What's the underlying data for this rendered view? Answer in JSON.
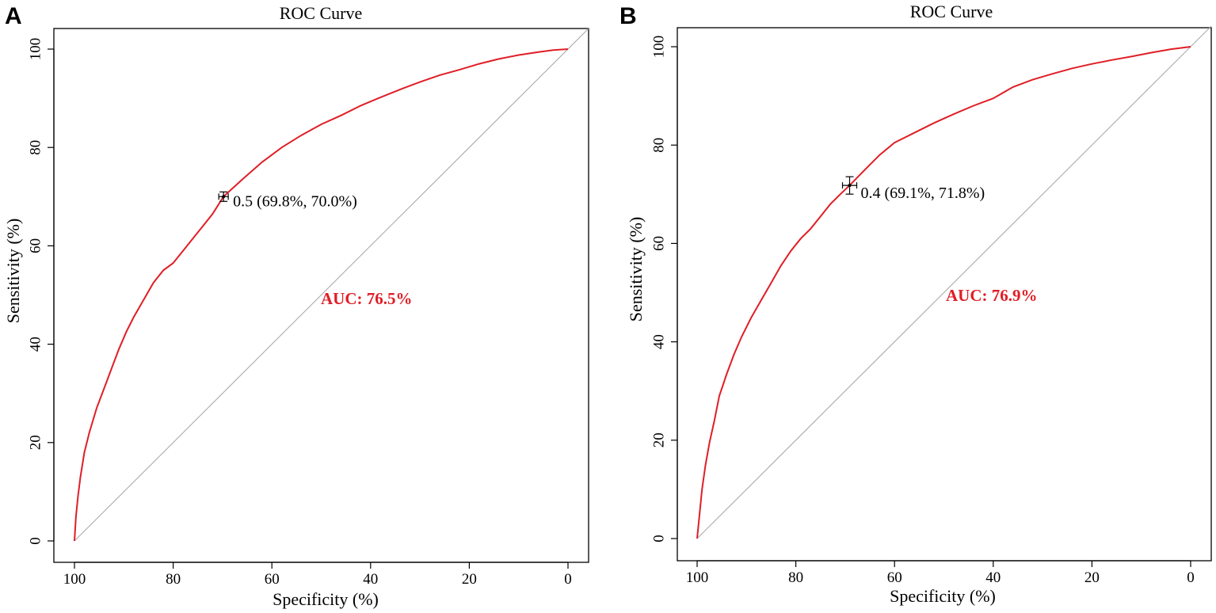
{
  "chart_data": [
    {
      "type": "line",
      "panel_label": "A",
      "title": "ROC Curve",
      "xlabel": "Specificity (%)",
      "ylabel": "Sensitivity (%)",
      "xlim": [
        100,
        0
      ],
      "ylim": [
        0,
        100
      ],
      "xticks": [
        "100",
        "80",
        "60",
        "40",
        "20",
        "0"
      ],
      "yticks": [
        "0",
        "20",
        "40",
        "60",
        "80",
        "100"
      ],
      "series": [
        {
          "name": "ROC",
          "color": "#e01e26",
          "x": [
            100,
            99.7,
            99.3,
            98.8,
            98,
            97,
            95.5,
            94,
            92.5,
            91,
            89.5,
            88,
            86,
            84,
            82,
            80,
            78,
            76,
            74,
            72,
            69.8,
            66,
            62,
            58,
            54,
            50,
            46,
            42,
            38,
            34,
            30,
            26,
            22,
            18,
            14,
            10,
            6,
            3,
            0
          ],
          "y": [
            0,
            5,
            9,
            13,
            18,
            22,
            27,
            31,
            35,
            39,
            42.5,
            45.5,
            49,
            52.5,
            55,
            56.5,
            59,
            61.5,
            64,
            66.5,
            70,
            73.5,
            77,
            80,
            82.5,
            84.7,
            86.5,
            88.5,
            90.2,
            91.8,
            93.3,
            94.7,
            95.8,
            97,
            98,
            98.8,
            99.4,
            99.8,
            100
          ]
        }
      ],
      "reference_line": {
        "x": [
          100,
          0
        ],
        "y": [
          0,
          100
        ],
        "color": "#aaaaaa"
      },
      "threshold_point": {
        "x": 69.8,
        "y": 70.0,
        "label": "0.5 (69.8%, 70.0%)"
      },
      "auc_label": "AUC: 76.5%",
      "auc_color": "#e01e26"
    },
    {
      "type": "line",
      "panel_label": "B",
      "title": "ROC Curve",
      "xlabel": "Specificity (%)",
      "ylabel": "Sensitivity (%)",
      "xlim": [
        100,
        0
      ],
      "ylim": [
        0,
        100
      ],
      "xticks": [
        "100",
        "80",
        "60",
        "40",
        "20",
        "0"
      ],
      "yticks": [
        "0",
        "20",
        "40",
        "60",
        "80",
        "100"
      ],
      "series": [
        {
          "name": "ROC",
          "color": "#e01e26",
          "x": [
            100,
            99.5,
            99,
            98.3,
            97.5,
            96.5,
            95.5,
            94,
            92.5,
            91,
            89,
            87,
            85,
            83,
            81,
            79,
            77,
            75,
            73,
            71,
            69.1,
            66,
            63,
            60,
            56,
            52,
            48,
            44,
            40,
            36,
            32,
            28,
            24,
            20,
            16,
            12,
            8,
            4,
            0
          ],
          "y": [
            0,
            5,
            10,
            15,
            19.5,
            24,
            29,
            33.5,
            37.5,
            41,
            45,
            48.5,
            52,
            55.5,
            58.5,
            61,
            63,
            65.5,
            68,
            70,
            71.8,
            75,
            78,
            80.5,
            82.5,
            84.5,
            86.3,
            88,
            89.5,
            91.8,
            93.3,
            94.5,
            95.6,
            96.5,
            97.3,
            98,
            98.8,
            99.5,
            100
          ]
        }
      ],
      "reference_line": {
        "x": [
          100,
          0
        ],
        "y": [
          0,
          100
        ],
        "color": "#aaaaaa"
      },
      "threshold_point": {
        "x": 69.1,
        "y": 71.8,
        "label": "0.4 (69.1%, 71.8%)"
      },
      "auc_label": "AUC: 76.9%",
      "auc_color": "#e01e26"
    }
  ]
}
